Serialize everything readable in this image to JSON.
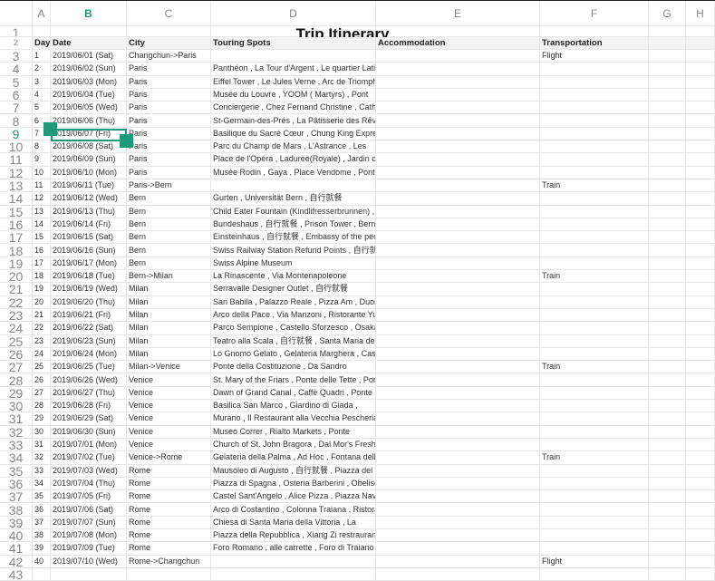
{
  "columns": [
    "A",
    "B",
    "C",
    "D",
    "E",
    "F",
    "G",
    "H"
  ],
  "active_column": "B",
  "active_row": 9,
  "title": "Trip Itinerary",
  "headers": {
    "day": "Day",
    "date": "Date",
    "city": "City",
    "spots": "Touring Spots",
    "accommodation": "Accommodation",
    "transportation": "Transportation"
  },
  "rows": [
    {
      "day": "1",
      "date": "2019/06/01 (Sat)",
      "city": "Changchun->Paris",
      "spots": "",
      "transport": "Flight"
    },
    {
      "day": "2",
      "date": "2019/06/02 (Sun)",
      "city": "Paris",
      "spots": "Panthéon , La Tour d'Argent , Le quartier Latin ,",
      "transport": ""
    },
    {
      "day": "3",
      "date": "2019/06/03 (Mon)",
      "city": "Paris",
      "spots": "Eiffel Tower , Le Jules Verne , Arc de Triomphe ,",
      "transport": ""
    },
    {
      "day": "4",
      "date": "2019/06/04 (Tue)",
      "city": "Paris",
      "spots": "Musée du Louvre , YOOM ( Martyrs) , Pont",
      "transport": ""
    },
    {
      "day": "5",
      "date": "2019/06/05 (Wed)",
      "city": "Paris",
      "spots": "Conciergerie , Chez Fernand Christine , Cathédrale",
      "transport": ""
    },
    {
      "day": "6",
      "date": "2019/06/06 (Thu)",
      "city": "Paris",
      "spots": "St-Germain-des-Prés , La Pâtisserie des Rêves ,",
      "transport": ""
    },
    {
      "day": "7",
      "date": "2019/06/07 (Fri)",
      "city": "Paris",
      "spots": "Basilique du Sacré Cœur , Chung King Express ,",
      "transport": ""
    },
    {
      "day": "8",
      "date": "2019/06/08 (Sat)",
      "city": "Paris",
      "spots": "Parc du Champ de Mars , L'Astrance , Les",
      "transport": ""
    },
    {
      "day": "9",
      "date": "2019/06/09 (Sun)",
      "city": "Paris",
      "spots": "Place de l'Opéra , Laduree(Royale) , Jardin des",
      "transport": ""
    },
    {
      "day": "10",
      "date": "2019/06/10 (Mon)",
      "city": "Paris",
      "spots": "Musée Rodin , Gaya , Place Vendome , Pont des",
      "transport": ""
    },
    {
      "day": "11",
      "date": "2019/06/11 (Tue)",
      "city": "Paris->Bern",
      "spots": "",
      "transport": "Train"
    },
    {
      "day": "12",
      "date": "2019/06/12 (Wed)",
      "city": "Bern",
      "spots": "Gurten , Universität Bern , 自行就餐",
      "transport": ""
    },
    {
      "day": "13",
      "date": "2019/06/13 (Thu)",
      "city": "Bern",
      "spots": "Child Eater Fountain (Kindlifresserbrunnen) ,",
      "transport": ""
    },
    {
      "day": "14",
      "date": "2019/06/14 (Fri)",
      "city": "Bern",
      "spots": "Bundeshaus , 自行就餐 , Prison Tower , Berner",
      "transport": ""
    },
    {
      "day": "15",
      "date": "2019/06/15 (Sat)",
      "city": "Bern",
      "spots": "Einsteinhaus , 自行就餐 , Embassy of the people's",
      "transport": ""
    },
    {
      "day": "16",
      "date": "2019/06/16 (Sun)",
      "city": "Bern",
      "spots": "Swiss Railway Station Refund Points , 自行就餐 ,",
      "transport": ""
    },
    {
      "day": "17",
      "date": "2019/06/17 (Mon)",
      "city": "Bern",
      "spots": "Swiss Alpine Museum",
      "transport": ""
    },
    {
      "day": "18",
      "date": "2019/06/18 (Tue)",
      "city": "Bern->Milan",
      "spots": "La Rinascente , Via Montenapoleone",
      "transport": "Train"
    },
    {
      "day": "19",
      "date": "2019/06/19 (Wed)",
      "city": "Milan",
      "spots": "Serravalle Designer Outlet , 自行就餐",
      "transport": ""
    },
    {
      "day": "20",
      "date": "2019/06/20 (Thu)",
      "city": "Milan",
      "spots": "San Babila , Palazzo Reale , Pizza Am , Duomo di",
      "transport": ""
    },
    {
      "day": "21",
      "date": "2019/06/21 (Fri)",
      "city": "Milan",
      "spots": "Arco della Pace , Via Manzoni , Ristorante Yuan ,",
      "transport": ""
    },
    {
      "day": "22",
      "date": "2019/06/22 (Sat)",
      "city": "Milan",
      "spots": "Parco Sempione , Castello Sforzesco , Osaka",
      "transport": ""
    },
    {
      "day": "23",
      "date": "2019/06/23 (Sun)",
      "city": "Milan",
      "spots": "Teatro alla Scala , 自行就餐 , Santa Maria delle",
      "transport": ""
    },
    {
      "day": "24",
      "date": "2019/06/24 (Mon)",
      "city": "Milan",
      "spots": "Lo Gnomo Gelato , Gelateria Marghera , Casa di",
      "transport": ""
    },
    {
      "day": "25",
      "date": "2019/06/25 (Tue)",
      "city": "Milan->Venice",
      "spots": "Ponte della Costituzione , Da Sandro",
      "transport": "Train"
    },
    {
      "day": "26",
      "date": "2019/06/26 (Wed)",
      "city": "Venice",
      "spots": "St. Mary of the Friars , Ponte delle Tette , Pontini ,",
      "transport": ""
    },
    {
      "day": "27",
      "date": "2019/06/27 (Thu)",
      "city": "Venice",
      "spots": "Dawn of Grand Canal , Caffè Quadri , Ponte Rialto",
      "transport": ""
    },
    {
      "day": "28",
      "date": "2019/06/28 (Fri)",
      "city": "Venice",
      "spots": "Basilica San Marco , Giardino di Giada ,",
      "transport": ""
    },
    {
      "day": "29",
      "date": "2019/06/29 (Sat)",
      "city": "Venice",
      "spots": "Murano , Il Restaurant alla Vecchia Pescheria",
      "transport": ""
    },
    {
      "day": "30",
      "date": "2019/06/30 (Sun)",
      "city": "Venice",
      "spots": "Museo Correr , Rialto Markets , Ponte",
      "transport": ""
    },
    {
      "day": "31",
      "date": "2019/07/01 (Mon)",
      "city": "Venice",
      "spots": "Church of St. John Bragora , Dal Mor's Fresh",
      "transport": ""
    },
    {
      "day": "32",
      "date": "2019/07/02 (Tue)",
      "city": "Venice->Rome",
      "spots": "Gelateria della Palma , Ad Hoc , Fontana della",
      "transport": "Train"
    },
    {
      "day": "33",
      "date": "2019/07/03 (Wed)",
      "city": "Rome",
      "spots": "Mausoleo di Augusto , 自行就餐 , Piazza del",
      "transport": ""
    },
    {
      "day": "34",
      "date": "2019/07/04 (Thu)",
      "city": "Rome",
      "spots": "Piazza di Spagna , Osteria Barberini , Obelisco di",
      "transport": ""
    },
    {
      "day": "35",
      "date": "2019/07/05 (Fri)",
      "city": "Rome",
      "spots": "Castel Sant'Angelo , Alice Pizza , Piazza Navona ,",
      "transport": ""
    },
    {
      "day": "36",
      "date": "2019/07/06 (Sat)",
      "city": "Rome",
      "spots": "Arco di Costantino , Colonna Traiana , Ristorante",
      "transport": ""
    },
    {
      "day": "37",
      "date": "2019/07/07 (Sun)",
      "city": "Rome",
      "spots": "Chiesa di Santa Maria della Vittoria , La",
      "transport": ""
    },
    {
      "day": "38",
      "date": "2019/07/08 (Mon)",
      "city": "Rome",
      "spots": "Piazza della Repubblica , Xiang Zi restraurant ,",
      "transport": ""
    },
    {
      "day": "39",
      "date": "2019/07/09 (Tue)",
      "city": "Rome",
      "spots": "Foro Romano , alle carrette , Foro di Traiano ,",
      "transport": ""
    },
    {
      "day": "40",
      "date": "2019/07/10 (Wed)",
      "city": "Rome->Changchun",
      "spots": "",
      "transport": "Flight"
    }
  ],
  "colors": {
    "accent": "#1e9a78",
    "header_bg": "#f3f3f3",
    "grid": "#e6e6e6"
  }
}
